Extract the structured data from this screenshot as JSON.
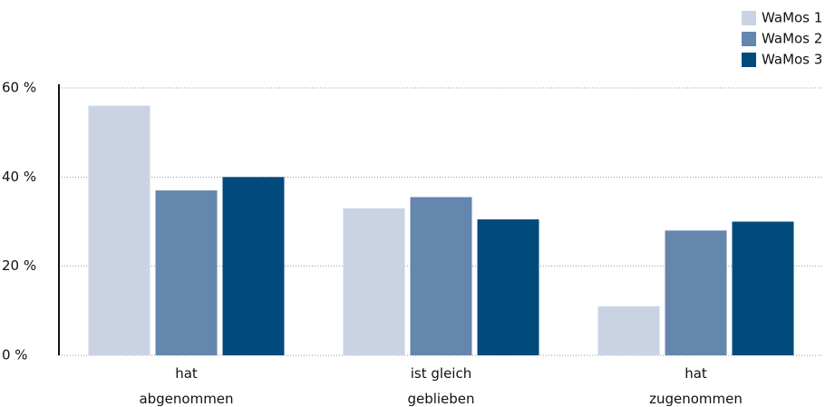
{
  "chart_data": {
    "type": "bar",
    "categories": [
      "hat abgenommen",
      "ist gleich geblieben",
      "hat zugenommen"
    ],
    "series": [
      {
        "name": "WaMos 1",
        "color": "#c9d3e3",
        "values": [
          56,
          33,
          11
        ]
      },
      {
        "name": "WaMos 2",
        "color": "#6586ad",
        "values": [
          37,
          35.5,
          28
        ]
      },
      {
        "name": "WaMos 3",
        "color": "#004a7c",
        "values": [
          40,
          30.5,
          30
        ]
      }
    ],
    "ylim": [
      0,
      60
    ],
    "yticks": [
      {
        "value": 0,
        "label": "0 %"
      },
      {
        "value": 20,
        "label": "20 %"
      },
      {
        "value": 40,
        "label": "40 %"
      },
      {
        "value": 60,
        "label": "60 %"
      }
    ],
    "grid": true,
    "legend": "top-right"
  }
}
